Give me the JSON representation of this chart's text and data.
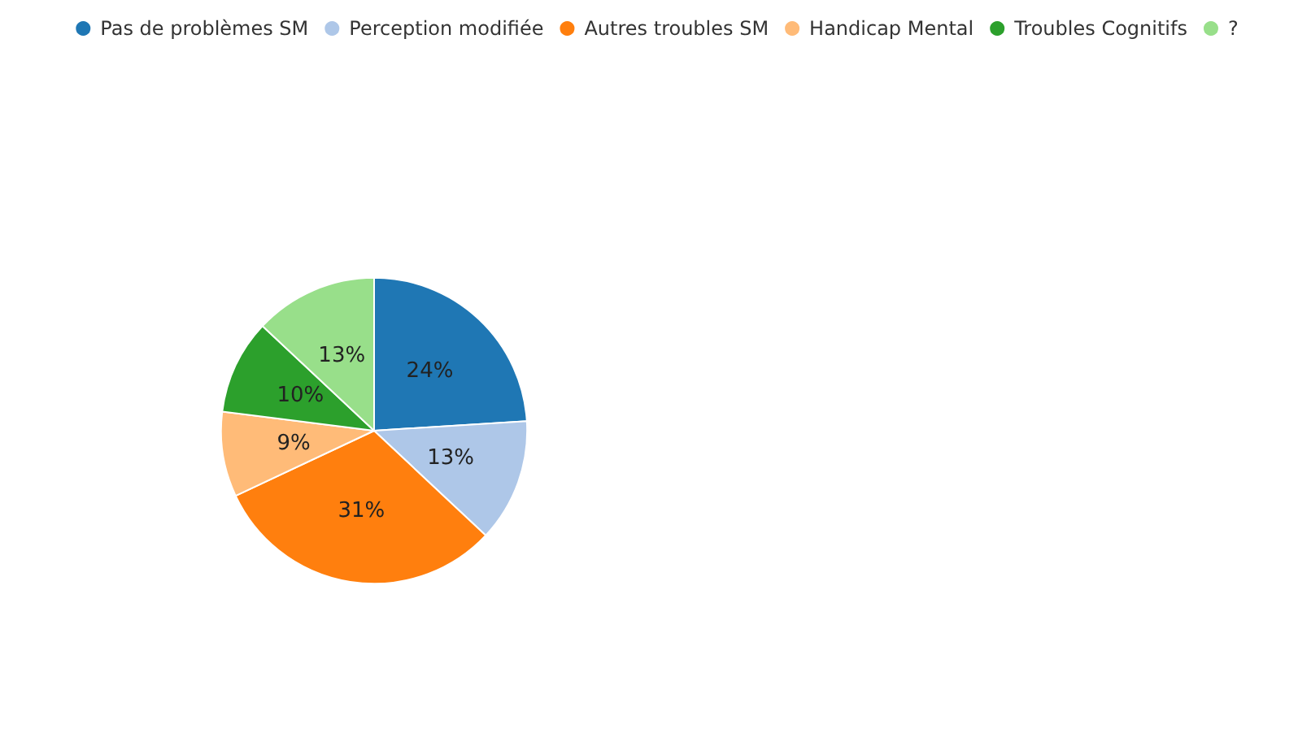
{
  "chart_data": {
    "type": "pie",
    "categories": [
      "Pas de problèmes SM",
      "Perception modifiée",
      "Autres troubles SM",
      "Handicap Mental",
      "Troubles Cognitifs",
      "?"
    ],
    "values": [
      24,
      13,
      31,
      9,
      10,
      13
    ],
    "colors": [
      "#1f77b4",
      "#aec7e8",
      "#ff7f0e",
      "#ffbb78",
      "#2ca02c",
      "#98df8a"
    ],
    "value_labels": [
      "24%",
      "13%",
      "31%",
      "9%",
      "10%",
      "13%"
    ],
    "legend": "top"
  }
}
